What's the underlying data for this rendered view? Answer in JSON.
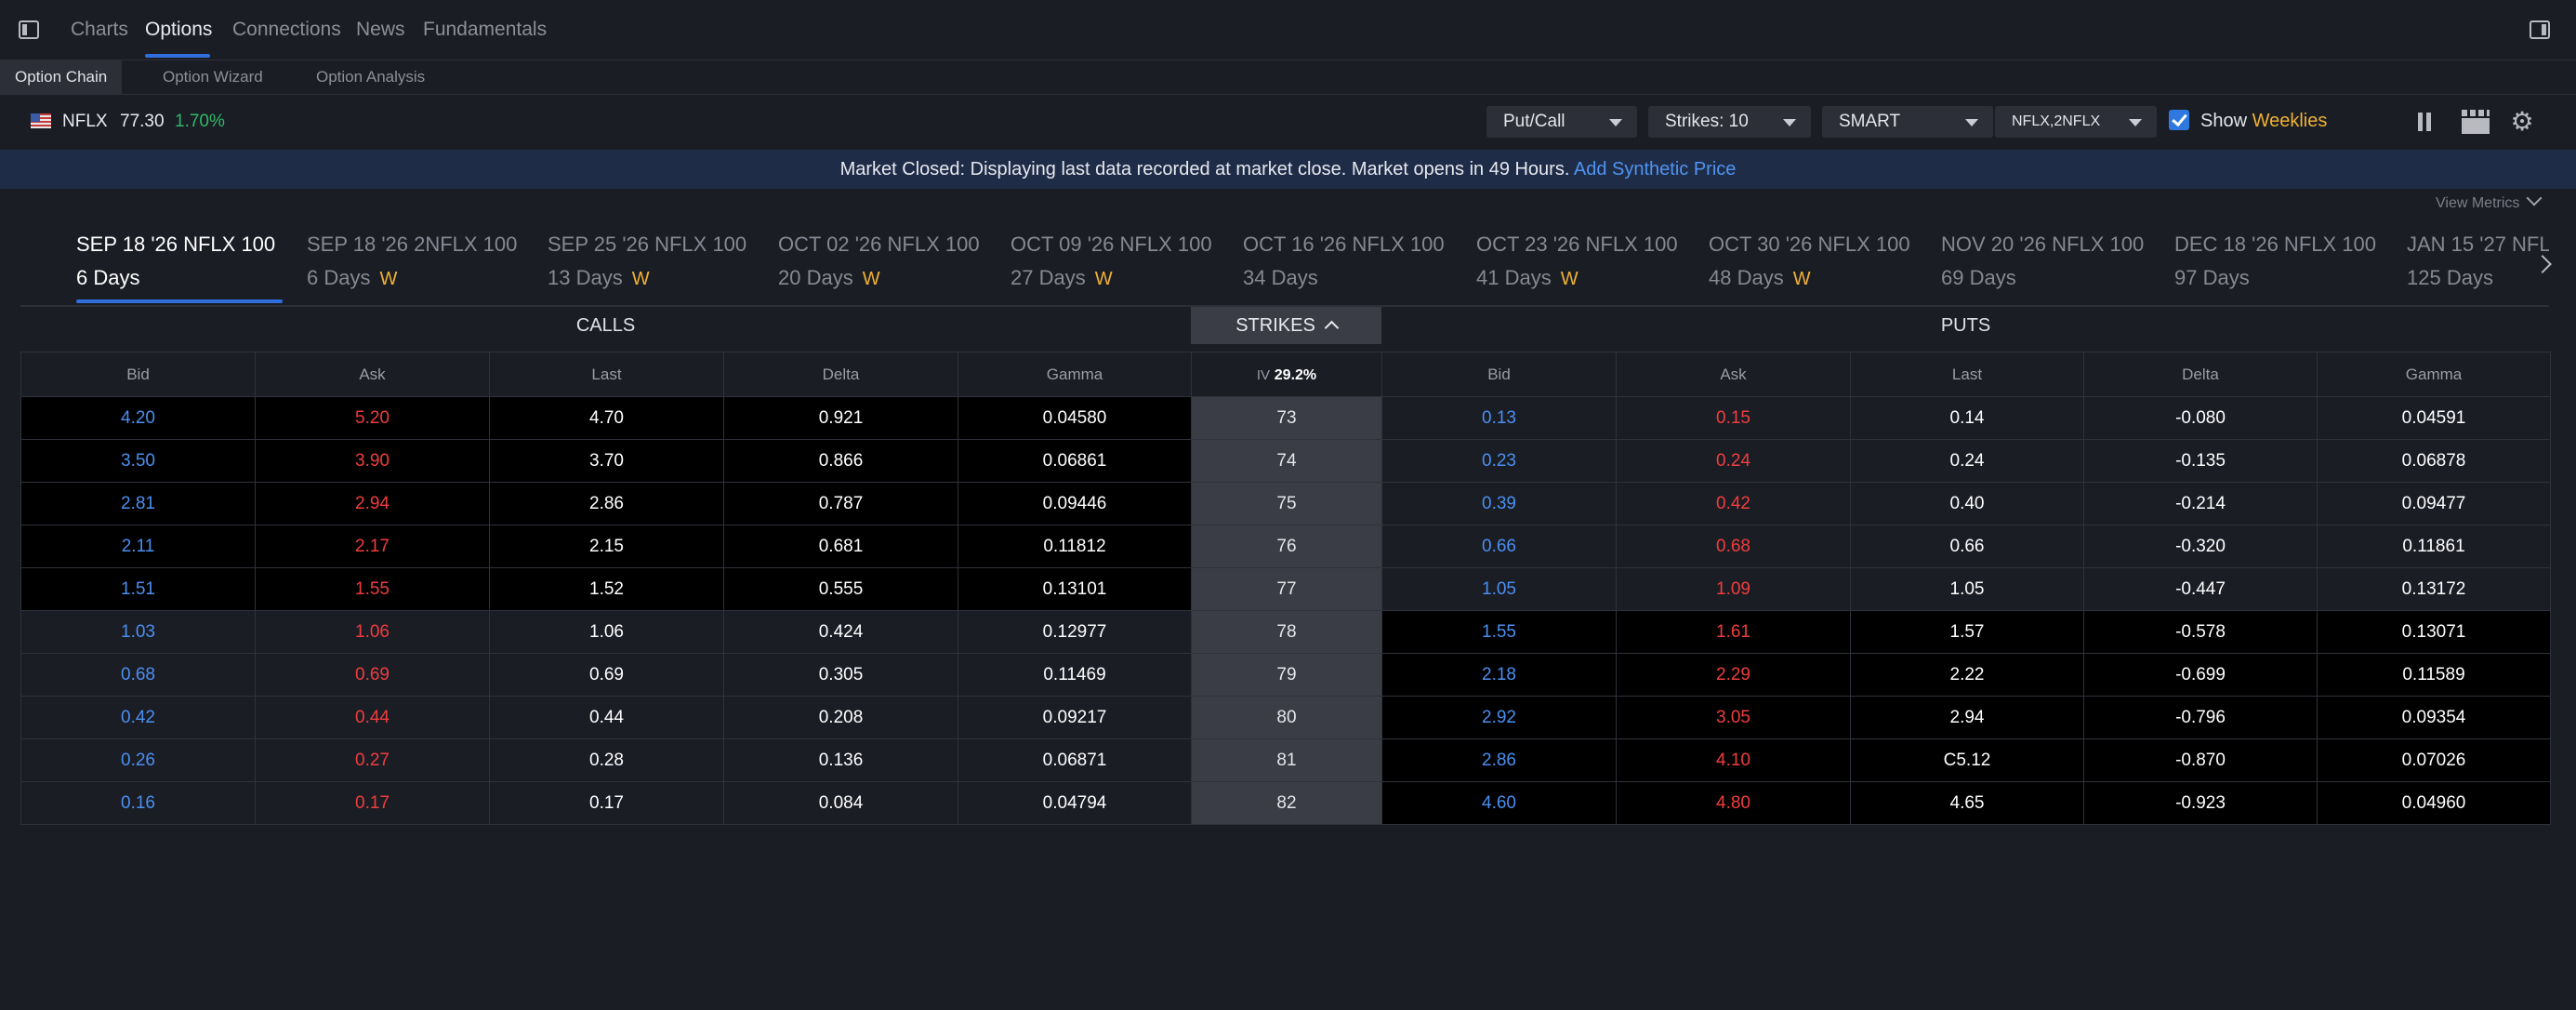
{
  "nav": {
    "tabs": [
      "Charts",
      "Options",
      "Connections",
      "News",
      "Fundamentals"
    ],
    "active": "Options"
  },
  "subnav": {
    "tabs": [
      "Option Chain",
      "Option Wizard",
      "Option Analysis"
    ]
  },
  "ticker": {
    "symbol": "NFLX",
    "price": "77.30",
    "change": "1.70%"
  },
  "controls": {
    "type": "Put/Call",
    "strikes": "Strikes: 10",
    "exchange": "SMART",
    "classes": "NFLX,2NFLX",
    "show_label": "Show",
    "weeklies_label": "Weeklies"
  },
  "banner": {
    "text": "Market Closed: Displaying last data recorded at market close. Market opens in 49 Hours.",
    "link": "Add Synthetic Price"
  },
  "view_metrics": "View Metrics",
  "expirations": [
    {
      "title": "SEP 18 '26 NFLX 100",
      "days": "6 Days",
      "weekly": ""
    },
    {
      "title": "SEP 18 '26 2NFLX 100",
      "days": "6 Days",
      "weekly": "W"
    },
    {
      "title": "SEP 25 '26 NFLX 100",
      "days": "13 Days",
      "weekly": "W"
    },
    {
      "title": "OCT 02 '26 NFLX 100",
      "days": "20 Days",
      "weekly": "W"
    },
    {
      "title": "OCT 09 '26 NFLX 100",
      "days": "27 Days",
      "weekly": "W"
    },
    {
      "title": "OCT 16 '26 NFLX 100",
      "days": "34 Days",
      "weekly": ""
    },
    {
      "title": "OCT 23 '26 NFLX 100",
      "days": "41 Days",
      "weekly": "W"
    },
    {
      "title": "OCT 30 '26 NFLX 100",
      "days": "48 Days",
      "weekly": "W"
    },
    {
      "title": "NOV 20 '26 NFLX 100",
      "days": "69 Days",
      "weekly": ""
    },
    {
      "title": "DEC 18 '26 NFLX 100",
      "days": "97 Days",
      "weekly": ""
    },
    {
      "title": "JAN 15 '27 NFLX 100",
      "days": "125 Days",
      "weekly": ""
    }
  ],
  "table": {
    "calls_label": "CALLS",
    "puts_label": "PUTS",
    "strikes_label": "STRIKES",
    "iv_label": "IV",
    "iv_value": "29.2%",
    "columns": [
      "Bid",
      "Ask",
      "Last",
      "Delta",
      "Gamma"
    ],
    "strikes": [
      "73",
      "74",
      "75",
      "76",
      "77",
      "78",
      "79",
      "80",
      "81",
      "82"
    ],
    "calls": [
      [
        "4.20",
        "5.20",
        "4.70",
        "0.921",
        "0.04580"
      ],
      [
        "3.50",
        "3.90",
        "3.70",
        "0.866",
        "0.06861"
      ],
      [
        "2.81",
        "2.94",
        "2.86",
        "0.787",
        "0.09446"
      ],
      [
        "2.11",
        "2.17",
        "2.15",
        "0.681",
        "0.11812"
      ],
      [
        "1.51",
        "1.55",
        "1.52",
        "0.555",
        "0.13101"
      ],
      [
        "1.03",
        "1.06",
        "1.06",
        "0.424",
        "0.12977"
      ],
      [
        "0.68",
        "0.69",
        "0.69",
        "0.305",
        "0.11469"
      ],
      [
        "0.42",
        "0.44",
        "0.44",
        "0.208",
        "0.09217"
      ],
      [
        "0.26",
        "0.27",
        "0.28",
        "0.136",
        "0.06871"
      ],
      [
        "0.16",
        "0.17",
        "0.17",
        "0.084",
        "0.04794"
      ]
    ],
    "puts": [
      [
        "0.13",
        "0.15",
        "0.14",
        "-0.080",
        "0.04591"
      ],
      [
        "0.23",
        "0.24",
        "0.24",
        "-0.135",
        "0.06878"
      ],
      [
        "0.39",
        "0.42",
        "0.40",
        "-0.214",
        "0.09477"
      ],
      [
        "0.66",
        "0.68",
        "0.66",
        "-0.320",
        "0.11861"
      ],
      [
        "1.05",
        "1.09",
        "1.05",
        "-0.447",
        "0.13172"
      ],
      [
        "1.55",
        "1.61",
        "1.57",
        "-0.578",
        "0.13071"
      ],
      [
        "2.18",
        "2.29",
        "2.22",
        "-0.699",
        "0.11589"
      ],
      [
        "2.92",
        "3.05",
        "2.94",
        "-0.796",
        "0.09354"
      ],
      [
        "2.86",
        "4.10",
        "C5.12",
        "-0.870",
        "0.07026"
      ],
      [
        "4.60",
        "4.80",
        "4.65",
        "-0.923",
        "0.04960"
      ]
    ],
    "calls_itm_rows": 5,
    "puts_itm_from_row": 5
  },
  "colors": {
    "bid": "#4a8ff0",
    "ask": "#ef3d3d",
    "accent": "#2f6fdd",
    "weeklies": "#f0b232",
    "positive": "#2fb866"
  },
  "icons": [
    "sidebar-toggle-icon",
    "panel-toggle-icon",
    "us-flag-icon",
    "pause-icon",
    "clapperboard-icon",
    "gear-icon",
    "chevron-right-icon",
    "chevron-up-icon",
    "chevron-down-icon",
    "checkbox-checked-icon"
  ]
}
